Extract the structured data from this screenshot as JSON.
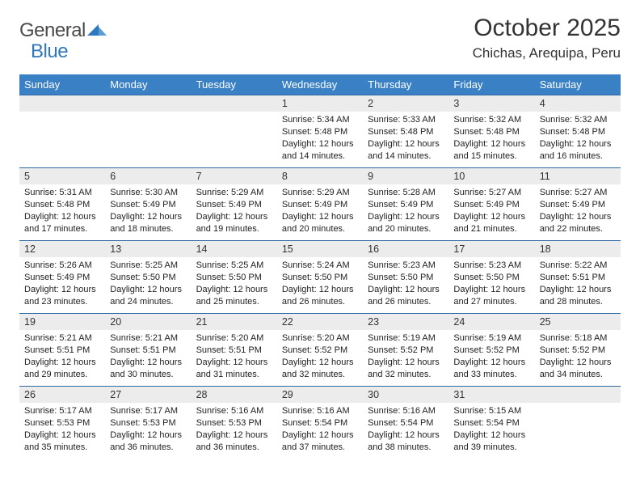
{
  "brand": {
    "part1": "General",
    "part2": "Blue"
  },
  "title": "October 2025",
  "location": "Chichas, Arequipa, Peru",
  "colors": {
    "header_bg": "#3a80c4",
    "row_divider": "#2d6aa3",
    "daynum_bg": "#ececec",
    "brand_accent": "#2f78bd"
  },
  "weekdays": [
    "Sunday",
    "Monday",
    "Tuesday",
    "Wednesday",
    "Thursday",
    "Friday",
    "Saturday"
  ],
  "weeks": [
    [
      null,
      null,
      null,
      {
        "n": "1",
        "sr": "5:34 AM",
        "ss": "5:48 PM",
        "dl": "12 hours and 14 minutes."
      },
      {
        "n": "2",
        "sr": "5:33 AM",
        "ss": "5:48 PM",
        "dl": "12 hours and 14 minutes."
      },
      {
        "n": "3",
        "sr": "5:32 AM",
        "ss": "5:48 PM",
        "dl": "12 hours and 15 minutes."
      },
      {
        "n": "4",
        "sr": "5:32 AM",
        "ss": "5:48 PM",
        "dl": "12 hours and 16 minutes."
      }
    ],
    [
      {
        "n": "5",
        "sr": "5:31 AM",
        "ss": "5:48 PM",
        "dl": "12 hours and 17 minutes."
      },
      {
        "n": "6",
        "sr": "5:30 AM",
        "ss": "5:49 PM",
        "dl": "12 hours and 18 minutes."
      },
      {
        "n": "7",
        "sr": "5:29 AM",
        "ss": "5:49 PM",
        "dl": "12 hours and 19 minutes."
      },
      {
        "n": "8",
        "sr": "5:29 AM",
        "ss": "5:49 PM",
        "dl": "12 hours and 20 minutes."
      },
      {
        "n": "9",
        "sr": "5:28 AM",
        "ss": "5:49 PM",
        "dl": "12 hours and 20 minutes."
      },
      {
        "n": "10",
        "sr": "5:27 AM",
        "ss": "5:49 PM",
        "dl": "12 hours and 21 minutes."
      },
      {
        "n": "11",
        "sr": "5:27 AM",
        "ss": "5:49 PM",
        "dl": "12 hours and 22 minutes."
      }
    ],
    [
      {
        "n": "12",
        "sr": "5:26 AM",
        "ss": "5:49 PM",
        "dl": "12 hours and 23 minutes."
      },
      {
        "n": "13",
        "sr": "5:25 AM",
        "ss": "5:50 PM",
        "dl": "12 hours and 24 minutes."
      },
      {
        "n": "14",
        "sr": "5:25 AM",
        "ss": "5:50 PM",
        "dl": "12 hours and 25 minutes."
      },
      {
        "n": "15",
        "sr": "5:24 AM",
        "ss": "5:50 PM",
        "dl": "12 hours and 26 minutes."
      },
      {
        "n": "16",
        "sr": "5:23 AM",
        "ss": "5:50 PM",
        "dl": "12 hours and 26 minutes."
      },
      {
        "n": "17",
        "sr": "5:23 AM",
        "ss": "5:50 PM",
        "dl": "12 hours and 27 minutes."
      },
      {
        "n": "18",
        "sr": "5:22 AM",
        "ss": "5:51 PM",
        "dl": "12 hours and 28 minutes."
      }
    ],
    [
      {
        "n": "19",
        "sr": "5:21 AM",
        "ss": "5:51 PM",
        "dl": "12 hours and 29 minutes."
      },
      {
        "n": "20",
        "sr": "5:21 AM",
        "ss": "5:51 PM",
        "dl": "12 hours and 30 minutes."
      },
      {
        "n": "21",
        "sr": "5:20 AM",
        "ss": "5:51 PM",
        "dl": "12 hours and 31 minutes."
      },
      {
        "n": "22",
        "sr": "5:20 AM",
        "ss": "5:52 PM",
        "dl": "12 hours and 32 minutes."
      },
      {
        "n": "23",
        "sr": "5:19 AM",
        "ss": "5:52 PM",
        "dl": "12 hours and 32 minutes."
      },
      {
        "n": "24",
        "sr": "5:19 AM",
        "ss": "5:52 PM",
        "dl": "12 hours and 33 minutes."
      },
      {
        "n": "25",
        "sr": "5:18 AM",
        "ss": "5:52 PM",
        "dl": "12 hours and 34 minutes."
      }
    ],
    [
      {
        "n": "26",
        "sr": "5:17 AM",
        "ss": "5:53 PM",
        "dl": "12 hours and 35 minutes."
      },
      {
        "n": "27",
        "sr": "5:17 AM",
        "ss": "5:53 PM",
        "dl": "12 hours and 36 minutes."
      },
      {
        "n": "28",
        "sr": "5:16 AM",
        "ss": "5:53 PM",
        "dl": "12 hours and 36 minutes."
      },
      {
        "n": "29",
        "sr": "5:16 AM",
        "ss": "5:54 PM",
        "dl": "12 hours and 37 minutes."
      },
      {
        "n": "30",
        "sr": "5:16 AM",
        "ss": "5:54 PM",
        "dl": "12 hours and 38 minutes."
      },
      {
        "n": "31",
        "sr": "5:15 AM",
        "ss": "5:54 PM",
        "dl": "12 hours and 39 minutes."
      },
      null
    ]
  ],
  "labels": {
    "sunrise": "Sunrise:",
    "sunset": "Sunset:",
    "daylight": "Daylight:"
  }
}
